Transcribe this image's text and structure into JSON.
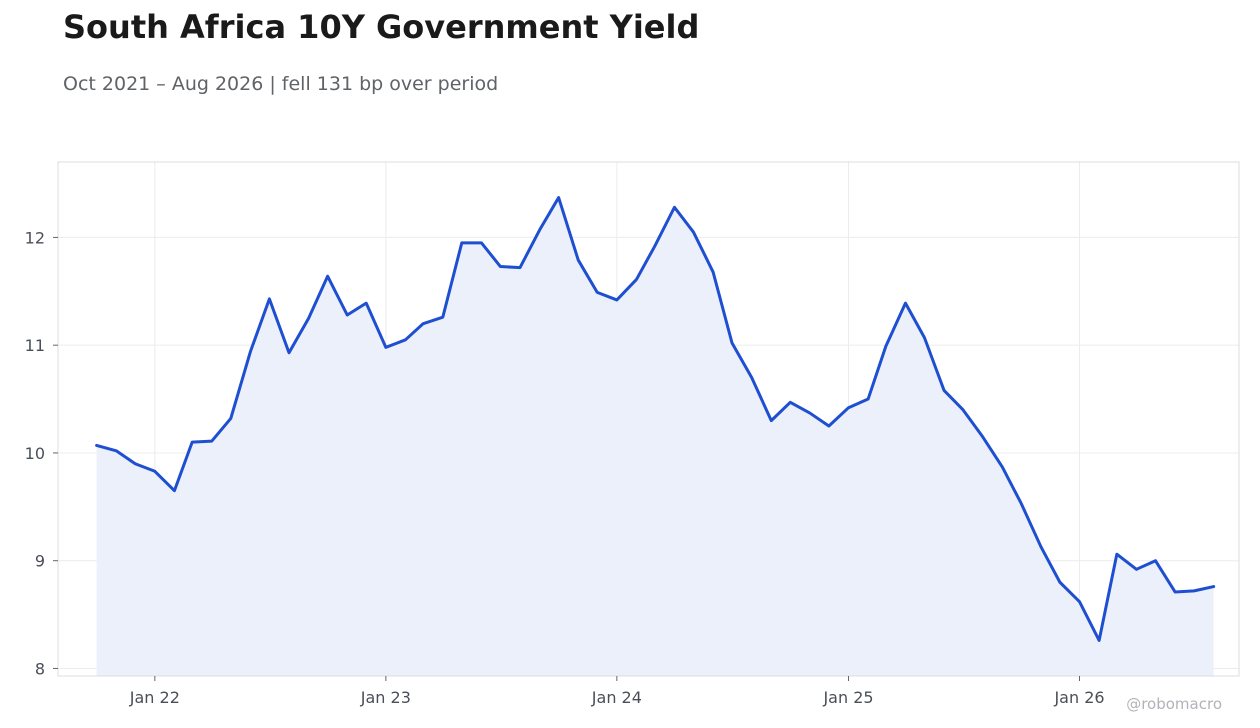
{
  "title": "South Africa 10Y Government Yield",
  "subtitle": "Oct 2021 – Aug 2026 | fell 131 bp over period",
  "watermark": "@robomacro",
  "colors": {
    "line": "#1f4fd1",
    "area": "#ebf0fb",
    "grid": "#ececec",
    "frame": "#dcdcdc"
  },
  "chart_data": {
    "type": "line",
    "title": "South Africa 10Y Government Yield",
    "subtitle": "Oct 2021 – Aug 2026 | fell 131 bp over period",
    "xlabel": "",
    "ylabel": "",
    "xlim": [
      "2021-08-01",
      "2026-09-10"
    ],
    "ylim": [
      7.93,
      12.7
    ],
    "y_ticks": [
      8,
      9,
      10,
      11,
      12
    ],
    "x_ticks": [
      {
        "date": "2022-01-01",
        "label": "Jan 22"
      },
      {
        "date": "2023-01-01",
        "label": "Jan 23"
      },
      {
        "date": "2024-01-01",
        "label": "Jan 24"
      },
      {
        "date": "2025-01-01",
        "label": "Jan 25"
      },
      {
        "date": "2026-01-01",
        "label": "Jan 26"
      }
    ],
    "grid": true,
    "fill_area": true,
    "series": [
      {
        "points": [
          [
            "2021-10-01",
            10.07
          ],
          [
            "2021-11-01",
            10.02
          ],
          [
            "2021-12-01",
            9.9
          ],
          [
            "2022-01-01",
            9.83
          ],
          [
            "2022-02-01",
            9.65
          ],
          [
            "2022-03-01",
            10.1
          ],
          [
            "2022-04-01",
            10.11
          ],
          [
            "2022-05-01",
            10.32
          ],
          [
            "2022-06-01",
            10.94
          ],
          [
            "2022-07-01",
            11.43
          ],
          [
            "2022-08-01",
            10.93
          ],
          [
            "2022-09-01",
            11.25
          ],
          [
            "2022-10-01",
            11.64
          ],
          [
            "2022-11-01",
            11.28
          ],
          [
            "2022-12-01",
            11.39
          ],
          [
            "2023-01-01",
            10.98
          ],
          [
            "2023-02-01",
            11.05
          ],
          [
            "2023-03-01",
            11.2
          ],
          [
            "2023-04-01",
            11.26
          ],
          [
            "2023-05-01",
            11.95
          ],
          [
            "2023-06-01",
            11.95
          ],
          [
            "2023-07-01",
            11.73
          ],
          [
            "2023-08-01",
            11.72
          ],
          [
            "2023-09-01",
            12.07
          ],
          [
            "2023-10-01",
            12.37
          ],
          [
            "2023-11-01",
            11.79
          ],
          [
            "2023-12-01",
            11.49
          ],
          [
            "2024-01-01",
            11.42
          ],
          [
            "2024-02-01",
            11.61
          ],
          [
            "2024-03-01",
            11.92
          ],
          [
            "2024-04-01",
            12.28
          ],
          [
            "2024-05-01",
            12.05
          ],
          [
            "2024-06-01",
            11.68
          ],
          [
            "2024-07-01",
            11.02
          ],
          [
            "2024-08-01",
            10.7
          ],
          [
            "2024-09-01",
            10.3
          ],
          [
            "2024-10-01",
            10.47
          ],
          [
            "2024-11-01",
            10.37
          ],
          [
            "2024-12-01",
            10.25
          ],
          [
            "2025-01-01",
            10.42
          ],
          [
            "2025-02-01",
            10.5
          ],
          [
            "2025-03-01",
            10.99
          ],
          [
            "2025-04-01",
            11.39
          ],
          [
            "2025-05-01",
            11.07
          ],
          [
            "2025-06-01",
            10.58
          ],
          [
            "2025-07-01",
            10.4
          ],
          [
            "2025-08-01",
            10.15
          ],
          [
            "2025-09-01",
            9.87
          ],
          [
            "2025-10-01",
            9.53
          ],
          [
            "2025-11-01",
            9.13
          ],
          [
            "2025-12-01",
            8.8
          ],
          [
            "2026-01-01",
            8.62
          ],
          [
            "2026-02-01",
            8.26
          ],
          [
            "2026-03-01",
            9.06
          ],
          [
            "2026-04-01",
            8.92
          ],
          [
            "2026-05-01",
            9.0
          ],
          [
            "2026-06-01",
            8.71
          ],
          [
            "2026-07-01",
            8.72
          ],
          [
            "2026-08-01",
            8.76
          ]
        ]
      }
    ]
  }
}
